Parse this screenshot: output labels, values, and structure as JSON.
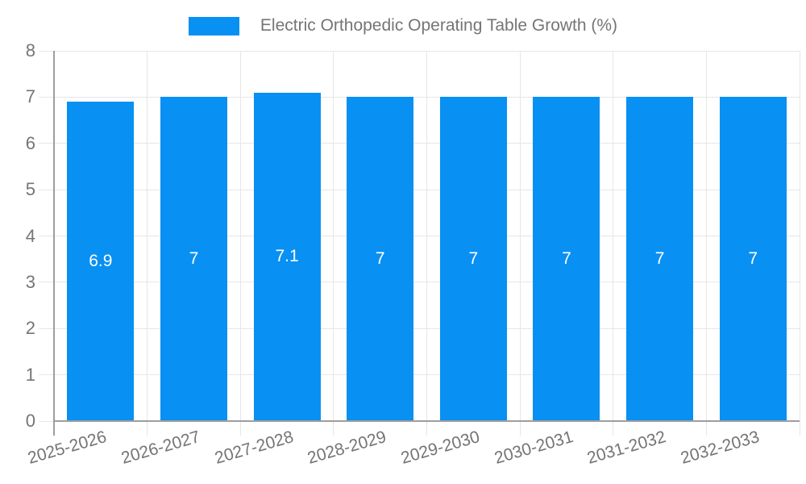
{
  "legend": {
    "label": "Electric Orthopedic Operating Table Growth (%)"
  },
  "chart_data": {
    "type": "bar",
    "title": "Electric Orthopedic Operating Table Growth (%)",
    "series_name": "Electric Orthopedic Operating Table Growth (%)",
    "categories": [
      "2025-2026",
      "2026-2027",
      "2027-2028",
      "2028-2029",
      "2029-2030",
      "2030-2031",
      "2031-2032",
      "2032-2033"
    ],
    "values": [
      6.9,
      7,
      7.1,
      7,
      7,
      7,
      7,
      7
    ],
    "bar_labels": [
      "6.9",
      "7",
      "7.1",
      "7",
      "7",
      "7",
      "7",
      "7"
    ],
    "xlabel": "",
    "ylabel": "",
    "ylim": [
      0,
      8
    ],
    "yticks": [
      0,
      1,
      2,
      3,
      4,
      5,
      6,
      7,
      8
    ],
    "grid": true,
    "legend_position": "top",
    "colors": {
      "bar": "#0890f2",
      "grid": "#e6e6e6",
      "axis": "#9e9e9e",
      "text": "#757575",
      "bar_label": "#ffffff"
    }
  }
}
